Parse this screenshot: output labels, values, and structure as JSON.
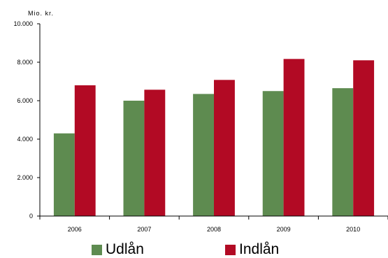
{
  "chart_data": {
    "type": "bar",
    "unit_label": "Mio. kr.",
    "categories": [
      "2006",
      "2007",
      "2008",
      "2009",
      "2010"
    ],
    "series": [
      {
        "name": "Udlån",
        "color": "#5e8b50",
        "values": [
          4300,
          6000,
          6350,
          6500,
          6650
        ]
      },
      {
        "name": "Indlån",
        "color": "#b20a24",
        "values": [
          6800,
          6570,
          7080,
          8170,
          8100
        ]
      }
    ],
    "ylim": [
      0,
      10000
    ],
    "yticks": [
      "0",
      "2.000",
      "4.000",
      "6.000",
      "8.000",
      "10.000"
    ],
    "ytick_values": [
      0,
      2000,
      4000,
      6000,
      8000,
      10000
    ],
    "grid": false,
    "legend_position": "bottom"
  }
}
